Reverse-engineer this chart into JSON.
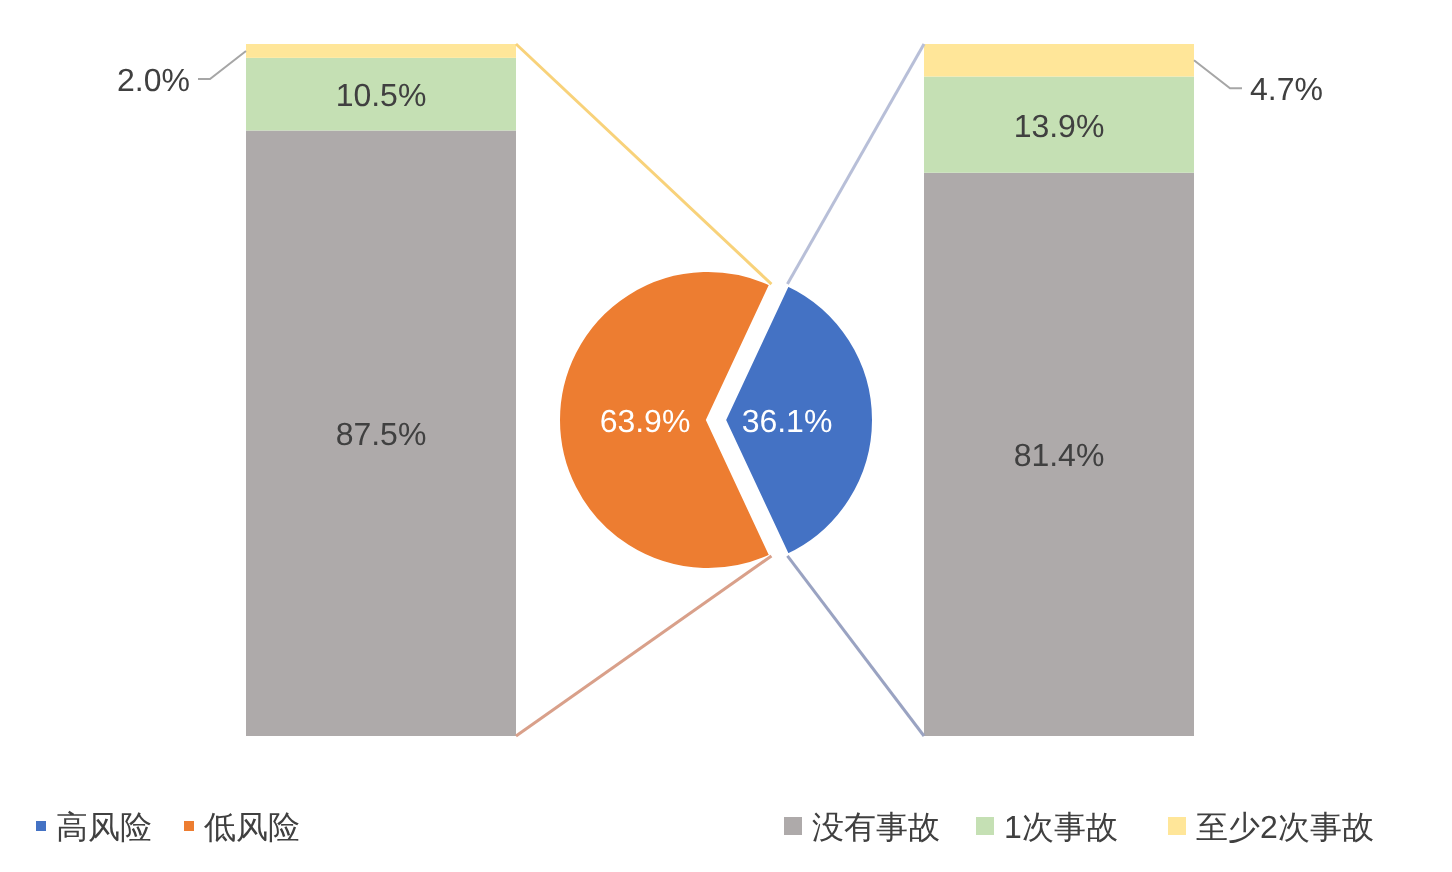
{
  "chart_data": [
    {
      "type": "bar",
      "stacked": true,
      "categories": [
        null
      ],
      "data_labels": true,
      "legend": false,
      "series": [
        {
          "color": "#aeaaaa",
          "values": [
            87.5
          ],
          "value_labels": [
            "87.5%"
          ]
        },
        {
          "color": "#c5e0b4",
          "values": [
            10.5
          ],
          "value_labels": [
            "10.5%"
          ]
        },
        {
          "color": "#ffe699",
          "values": [
            2.0
          ],
          "value_labels": [
            "2.0%"
          ]
        }
      ]
    },
    {
      "type": "pie",
      "categories": [
        "高风险",
        "低风险"
      ],
      "values": [
        36.1,
        63.9
      ],
      "colors": [
        "#4472c4",
        "#ed7d31"
      ],
      "value_labels": [
        "36.1%",
        "63.9%"
      ],
      "data_labels": true,
      "legend": "bottom left"
    },
    {
      "type": "bar",
      "stacked": true,
      "categories": [
        null
      ],
      "data_labels": true,
      "legend": "bottom right",
      "series": [
        {
          "name": "没有事故",
          "color": "#aeaaaa",
          "values": [
            81.4
          ],
          "value_labels": [
            "81.4%"
          ]
        },
        {
          "name": "1次事故",
          "color": "#c5e0b4",
          "values": [
            13.9
          ],
          "value_labels": [
            "13.9%"
          ]
        },
        {
          "name": "至少2次事故",
          "color": "#ffe699",
          "values": [
            4.7
          ],
          "value_labels": [
            "4.7%"
          ]
        }
      ]
    }
  ]
}
